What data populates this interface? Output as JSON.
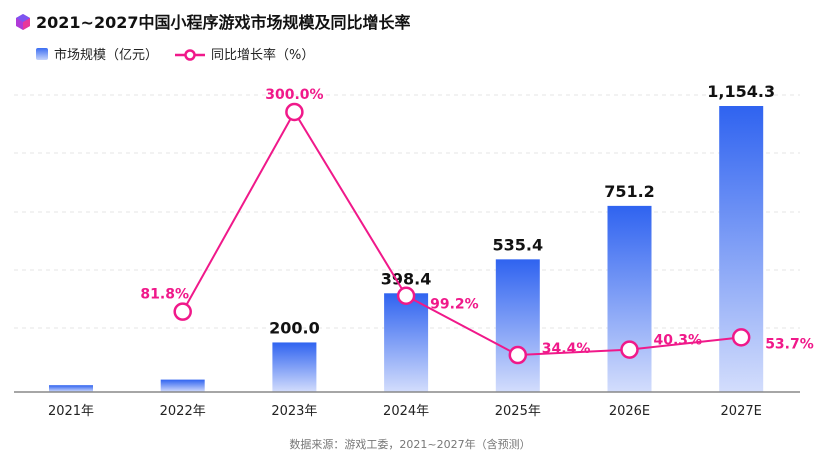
{
  "title": "2021~2027中国小程序游戏市场规模及同比增长率",
  "source": "数据来源：游戏工委，2021~2027年（含预测）",
  "chart_data": {
    "type": "bar+line",
    "title": "2021~2027中国小程序游戏市场规模及同比增长率",
    "categories": [
      "2021年",
      "2022年",
      "2023年",
      "2024年",
      "2025年",
      "2026E",
      "2027E"
    ],
    "series": [
      {
        "name": "市场规模（亿元）",
        "type": "bar",
        "values": [
          27.5,
          50.0,
          200.0,
          398.4,
          535.4,
          751.2,
          1154.3
        ],
        "labels": [
          "",
          "",
          "200.0",
          "398.4",
          "535.4",
          "751.2",
          "1,154.3"
        ],
        "color": "#2f63f0"
      },
      {
        "name": "同比增长率（%）",
        "type": "line",
        "values": [
          null,
          81.8,
          300.0,
          99.2,
          34.4,
          40.3,
          53.7
        ],
        "labels": [
          "",
          "81.8%",
          "300.0%",
          "99.2%",
          "34.4%",
          "40.3%",
          "53.7%"
        ],
        "color": "#f0198a"
      }
    ],
    "ylim": [
      0,
      1200
    ],
    "grid": true,
    "legend": "top-left"
  }
}
